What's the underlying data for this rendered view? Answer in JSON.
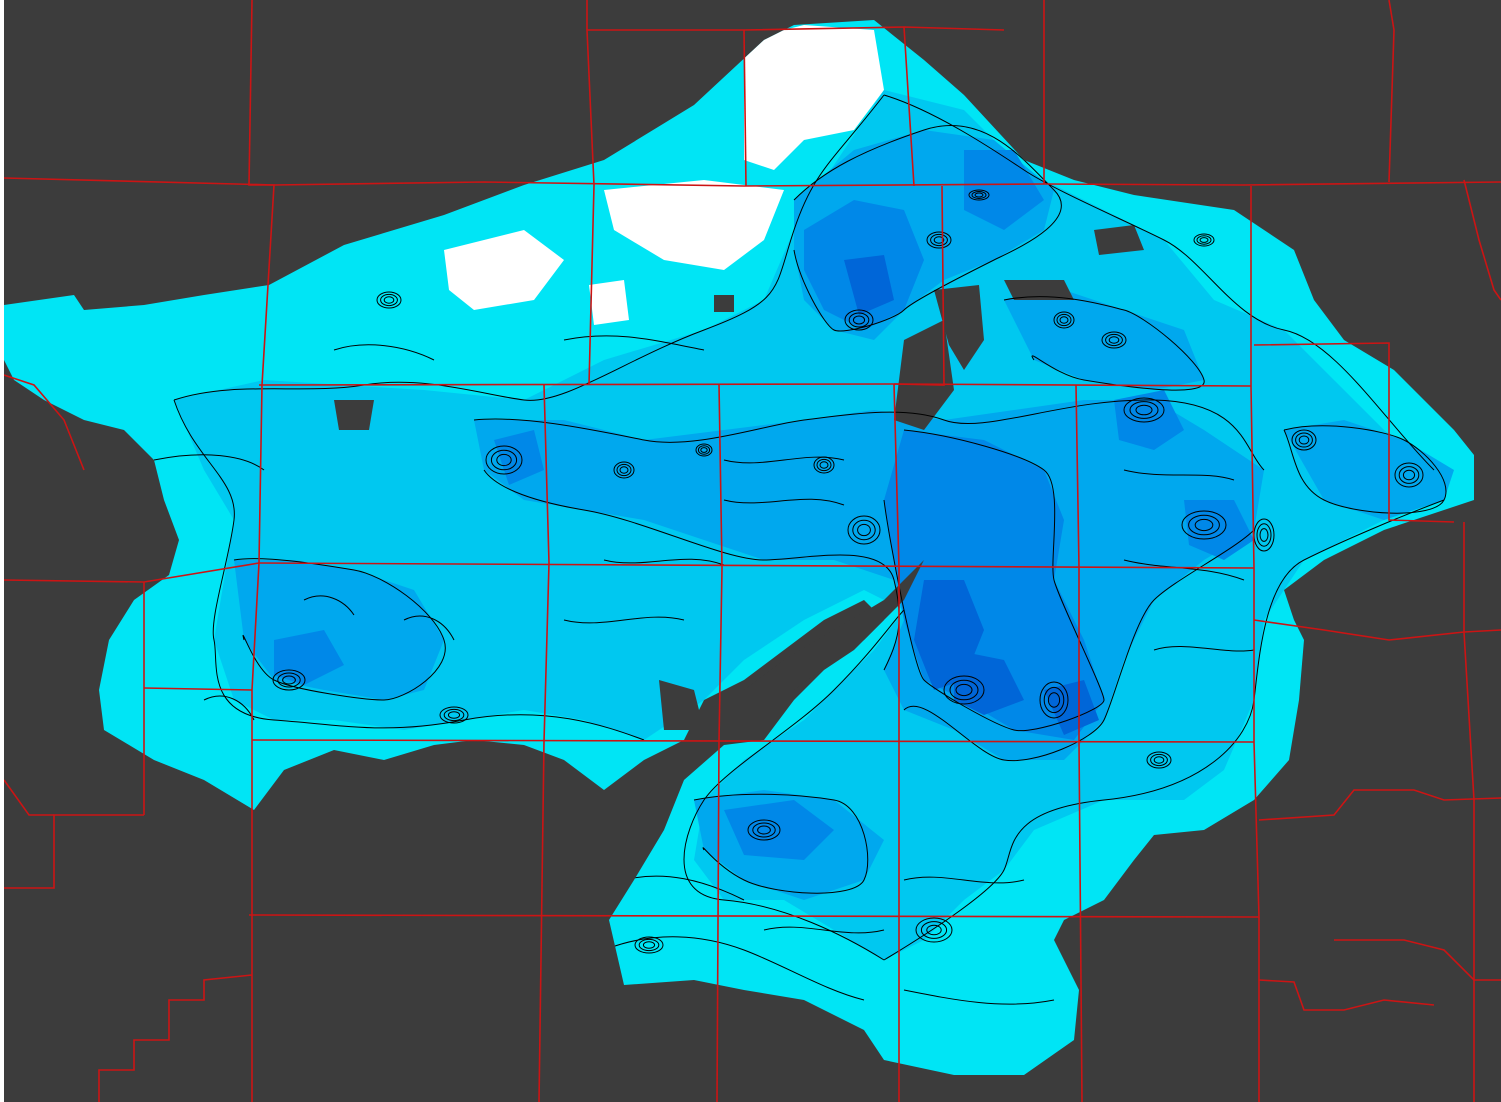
{
  "map": {
    "colors": {
      "background": "#3c3c3c",
      "boundary": "#cc1414",
      "contour": "#000000",
      "level_none": "#ffffff",
      "level_1": "#00e5f5",
      "level_2": "#00c8f0",
      "level_3": "#00a8ee",
      "level_4": "#0088e8",
      "level_5": "#0066d8"
    },
    "layers": [
      "background",
      "data-field",
      "contour-lines",
      "county-boundaries"
    ]
  }
}
